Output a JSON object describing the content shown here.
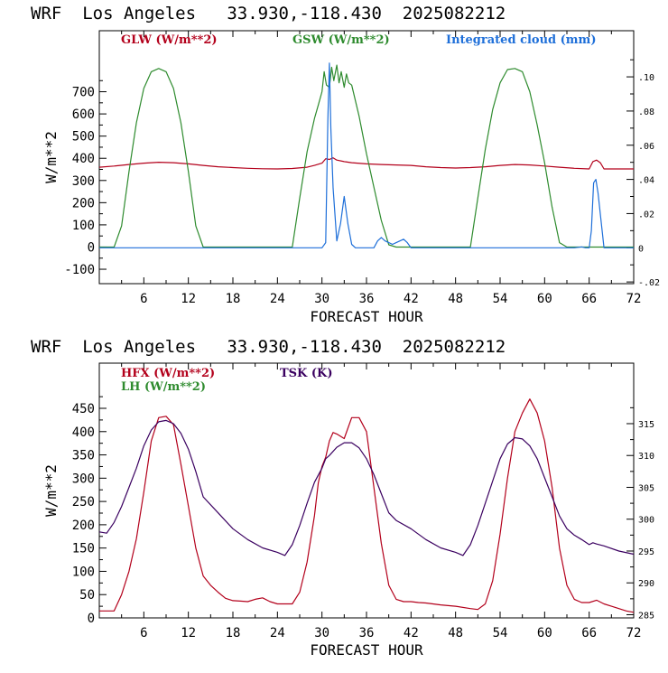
{
  "colors": {
    "red": "#b3001b",
    "green": "#2e8b2e",
    "blue": "#1e6fd9",
    "purple": "#3a0060",
    "axis": "#000000"
  },
  "chart_data": [
    {
      "type": "line",
      "title": "WRF  Los Angeles   33.930,-118.430  2025082212",
      "xlabel": "FORECAST HOUR",
      "ylabel": "W/m**2",
      "xlim": [
        0,
        72
      ],
      "ylim": [
        -165,
        975
      ],
      "y2lim": [
        -0.021,
        0.127
      ],
      "x_ticks": [
        6,
        12,
        18,
        24,
        30,
        36,
        42,
        48,
        54,
        60,
        66,
        72
      ],
      "y_ticks": [
        -100,
        0,
        100,
        200,
        300,
        400,
        500,
        600,
        700
      ],
      "y2_ticks": [
        -0.02,
        0,
        0.02,
        0.04,
        0.06,
        0.08,
        0.1
      ],
      "y2_tick_labels": [
        "-.02",
        "0",
        ".02",
        ".04",
        ".06",
        ".08",
        ".10"
      ],
      "series": [
        {
          "name": "GLW (W/m**2)",
          "axis": "left",
          "color": "red",
          "x": [
            0,
            2,
            4,
            6,
            8,
            10,
            12,
            14,
            16,
            18,
            20,
            22,
            24,
            26,
            28,
            29,
            30,
            30.5,
            31,
            31.5,
            32,
            33,
            34,
            36,
            38,
            40,
            42,
            44,
            46,
            48,
            50,
            52,
            54,
            56,
            58,
            60,
            62,
            64,
            66,
            66.5,
            67,
            67.5,
            68,
            70,
            72
          ],
          "y": [
            360,
            365,
            372,
            378,
            382,
            380,
            375,
            368,
            362,
            358,
            355,
            353,
            352,
            354,
            360,
            368,
            378,
            398,
            395,
            402,
            392,
            385,
            380,
            375,
            372,
            370,
            368,
            362,
            358,
            356,
            358,
            362,
            368,
            372,
            370,
            365,
            360,
            355,
            352,
            385,
            392,
            380,
            352,
            352,
            352
          ]
        },
        {
          "name": "GSW (W/m**2)",
          "axis": "left",
          "color": "green",
          "x": [
            0,
            2,
            3,
            4,
            5,
            6,
            7,
            8,
            9,
            10,
            11,
            12,
            13,
            14,
            15,
            16,
            17,
            18,
            20,
            22,
            24,
            26,
            27,
            28,
            29,
            29.5,
            30,
            30.3,
            30.6,
            31,
            31.3,
            31.6,
            32,
            32.3,
            32.6,
            33,
            33.3,
            33.6,
            34,
            35,
            36,
            37,
            38,
            39,
            40,
            41,
            42,
            44,
            46,
            48,
            50,
            51,
            52,
            53,
            54,
            55,
            56,
            57,
            58,
            59,
            60,
            61,
            62,
            63,
            64,
            66,
            68,
            70,
            72
          ],
          "y": [
            0,
            0,
            95,
            340,
            560,
            715,
            790,
            805,
            790,
            715,
            560,
            340,
            95,
            0,
            0,
            0,
            0,
            0,
            0,
            0,
            0,
            0,
            220,
            430,
            580,
            640,
            700,
            790,
            730,
            720,
            810,
            750,
            820,
            740,
            790,
            720,
            780,
            740,
            730,
            590,
            420,
            270,
            120,
            10,
            0,
            0,
            0,
            0,
            0,
            0,
            0,
            220,
            440,
            620,
            740,
            800,
            805,
            790,
            700,
            550,
            380,
            180,
            20,
            0,
            0,
            0,
            0,
            0,
            0
          ]
        },
        {
          "name": "Integrated cloud (mm)",
          "axis": "right",
          "color": "blue",
          "x": [
            0,
            28,
            29,
            30,
            30.5,
            30.8,
            31,
            31.2,
            31.5,
            32,
            32.5,
            33,
            33.5,
            34,
            34.5,
            35,
            36,
            37,
            37.5,
            38,
            38.5,
            39,
            39.5,
            40,
            40.5,
            41,
            41.5,
            42,
            44,
            62,
            63,
            64,
            65,
            65.5,
            66,
            66.3,
            66.6,
            66.9,
            67.2,
            68,
            72
          ],
          "y": [
            0,
            0,
            0,
            0,
            0.003,
            0.075,
            0.108,
            0.07,
            0.035,
            0.004,
            0.014,
            0.03,
            0.014,
            0.002,
            0,
            0,
            0,
            0,
            0.004,
            0.006,
            0.004,
            0.003,
            0.002,
            0.003,
            0.004,
            0.005,
            0.003,
            0,
            0,
            0,
            0,
            0,
            0.0005,
            0,
            0,
            0.01,
            0.038,
            0.04,
            0.032,
            0,
            0
          ]
        }
      ]
    },
    {
      "type": "line",
      "title": "WRF  Los Angeles   33.930,-118.430  2025082212",
      "xlabel": "FORECAST HOUR",
      "ylabel": "W/m**2",
      "xlim": [
        0,
        72
      ],
      "ylim": [
        0,
        547
      ],
      "y2lim": [
        284.5,
        324.5
      ],
      "x_ticks": [
        6,
        12,
        18,
        24,
        30,
        36,
        42,
        48,
        54,
        60,
        66,
        72
      ],
      "y_ticks": [
        0,
        50,
        100,
        150,
        200,
        250,
        300,
        350,
        400,
        450
      ],
      "y2_ticks": [
        285,
        290,
        295,
        300,
        305,
        310,
        315
      ],
      "series": [
        {
          "name": "HFX (W/m**2)",
          "axis": "left",
          "color": "red",
          "x": [
            0,
            2,
            3,
            4,
            5,
            6,
            7,
            8,
            9,
            10,
            11,
            12,
            13,
            14,
            15,
            16,
            17,
            18,
            19,
            20,
            21,
            22,
            23,
            24,
            25,
            26,
            27,
            28,
            29,
            29.5,
            30,
            30.5,
            31,
            31.5,
            32,
            33,
            34,
            35,
            36,
            37,
            38,
            39,
            40,
            41,
            42,
            43,
            44,
            46,
            48,
            50,
            51,
            52,
            53,
            54,
            55,
            56,
            57,
            58,
            59,
            60,
            61,
            62,
            63,
            64,
            65,
            66,
            67,
            68,
            69,
            70,
            71,
            72
          ],
          "y": [
            15,
            15,
            50,
            100,
            170,
            270,
            380,
            430,
            433,
            415,
            330,
            240,
            150,
            90,
            70,
            55,
            42,
            37,
            36,
            35,
            40,
            43,
            35,
            30,
            30,
            30,
            55,
            120,
            220,
            290,
            325,
            345,
            380,
            398,
            395,
            385,
            430,
            430,
            400,
            280,
            160,
            70,
            40,
            35,
            35,
            33,
            32,
            28,
            25,
            20,
            18,
            30,
            80,
            180,
            300,
            400,
            440,
            470,
            440,
            380,
            280,
            150,
            70,
            40,
            33,
            33,
            38,
            30,
            25,
            20,
            15,
            12
          ]
        },
        {
          "name": "LH (W/m**2)",
          "axis": "left",
          "color": "green",
          "x": [],
          "y": []
        },
        {
          "name": "TSK (K)",
          "axis": "right",
          "color": "purple",
          "x": [
            0,
            1,
            2,
            3,
            4,
            5,
            6,
            7,
            8,
            9,
            10,
            11,
            12,
            13,
            14,
            16,
            18,
            20,
            22,
            24,
            25,
            26,
            27,
            28,
            29,
            30,
            30.5,
            31,
            32,
            33,
            34,
            35,
            36,
            37,
            38,
            39,
            40,
            42,
            44,
            46,
            48,
            49,
            50,
            51,
            52,
            53,
            54,
            55,
            56,
            57,
            58,
            59,
            60,
            61,
            62,
            63,
            64,
            65,
            66,
            66.5,
            67,
            68,
            70,
            72
          ],
          "y": [
            298,
            297.8,
            299.5,
            302,
            305,
            308,
            311.5,
            314,
            315.3,
            315.5,
            315,
            313.5,
            311,
            307.5,
            303.5,
            301,
            298.5,
            296.8,
            295.5,
            294.8,
            294.3,
            296,
            299,
            302.5,
            305.8,
            308,
            309.5,
            310,
            311.3,
            312,
            312,
            311.2,
            309.5,
            307,
            304,
            301,
            299.8,
            298.5,
            296.8,
            295.5,
            294.8,
            294.3,
            296,
            299,
            302.5,
            306,
            309.5,
            311.8,
            312.8,
            312.6,
            311.5,
            309.5,
            306.5,
            303.5,
            300.5,
            298.5,
            297.5,
            296.8,
            296,
            296.3,
            296.1,
            295.8,
            295,
            294.5
          ]
        }
      ]
    }
  ]
}
